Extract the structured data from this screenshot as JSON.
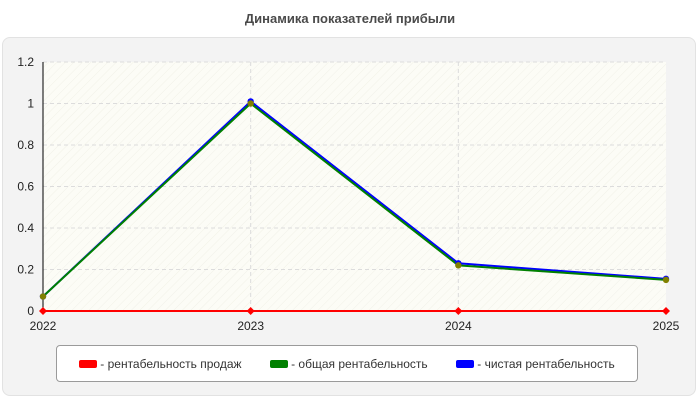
{
  "chart_data": {
    "type": "line",
    "title": "Динамика показателей прибыли",
    "categories": [
      "2022",
      "2023",
      "2024",
      "2025"
    ],
    "ylim": [
      0,
      1.2
    ],
    "yticks": [
      "0",
      "0.2",
      "0.4",
      "0.6",
      "0.8",
      "1",
      "1.2"
    ],
    "grid": true,
    "legend_position": "bottom",
    "series": [
      {
        "name": "- рентабельность продаж",
        "color": "#ff0000",
        "values": [
          0,
          0,
          0,
          0
        ]
      },
      {
        "name": "- общая рентабельность",
        "color": "#008000",
        "values": [
          0.07,
          1.0,
          0.22,
          0.15
        ]
      },
      {
        "name": "- чистая рентабельность",
        "color": "#0000ff",
        "values": [
          0.07,
          1.01,
          0.23,
          0.155
        ]
      }
    ],
    "marker_color": "#808000"
  }
}
